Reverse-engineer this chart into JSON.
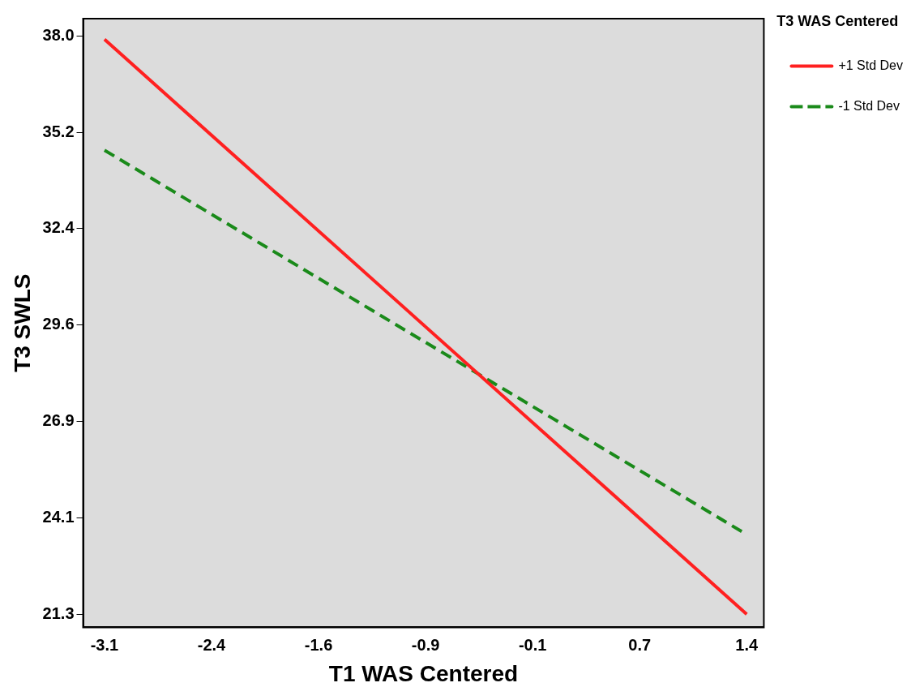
{
  "chart_data": {
    "type": "line",
    "xlabel": "T1 WAS Centered",
    "ylabel": "T3 SWLS",
    "legend_title": "T3 WAS Centered",
    "legend": "right",
    "grid": false,
    "marker": "none",
    "x": [
      -3.1,
      1.4
    ],
    "xlim": [
      -3.25,
      1.52
    ],
    "xticks": [
      -3.1,
      {
        "value": -2.35,
        "label": "-2.4"
      },
      -1.6,
      {
        "value": -0.85,
        "label": "-0.9"
      },
      -0.1,
      {
        "value": 0.65,
        "label": "0.7"
      },
      1.4
    ],
    "ylim": [
      20.92,
      38.5
    ],
    "yticks": [
      21.3,
      {
        "value": 24.083,
        "label": "24.1"
      },
      {
        "value": 26.867,
        "label": "26.9"
      },
      {
        "value": 29.65,
        "label": "29.6"
      },
      {
        "value": 32.433,
        "label": "32.4"
      },
      {
        "value": 35.217,
        "label": "35.2"
      },
      {
        "value": 38,
        "label": "38.0"
      }
    ],
    "series": [
      {
        "name": "+1 Std Dev",
        "color": "#ff2020",
        "line_style": "solid",
        "values": [
          37.9,
          21.3
        ]
      },
      {
        "name": "-1 Std Dev",
        "color": "#1a8a1a",
        "line_style": "dashed",
        "values": [
          34.7,
          23.6
        ]
      }
    ]
  }
}
